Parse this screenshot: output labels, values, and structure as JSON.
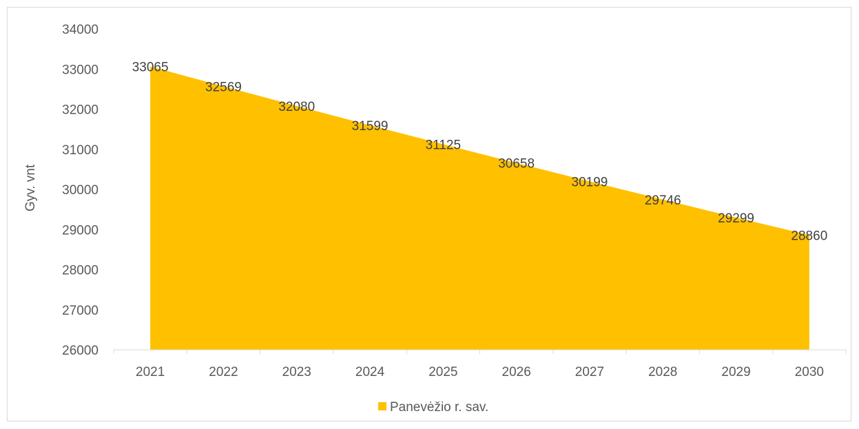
{
  "chart_data": {
    "type": "area",
    "categories": [
      "2021",
      "2022",
      "2023",
      "2024",
      "2025",
      "2026",
      "2027",
      "2028",
      "2029",
      "2030"
    ],
    "series": [
      {
        "name": "Panevėžio r. sav.",
        "values": [
          33065,
          32569,
          32080,
          31599,
          31125,
          30658,
          30199,
          29746,
          29299,
          28860
        ],
        "color": "#FFC000"
      }
    ],
    "ylabel": "Gyv. vnt",
    "ylim": [
      26000,
      34000
    ],
    "yticks": [
      26000,
      27000,
      28000,
      29000,
      30000,
      31000,
      32000,
      33000,
      34000
    ],
    "grid": false,
    "legend_position": "bottom",
    "data_labels": true
  }
}
